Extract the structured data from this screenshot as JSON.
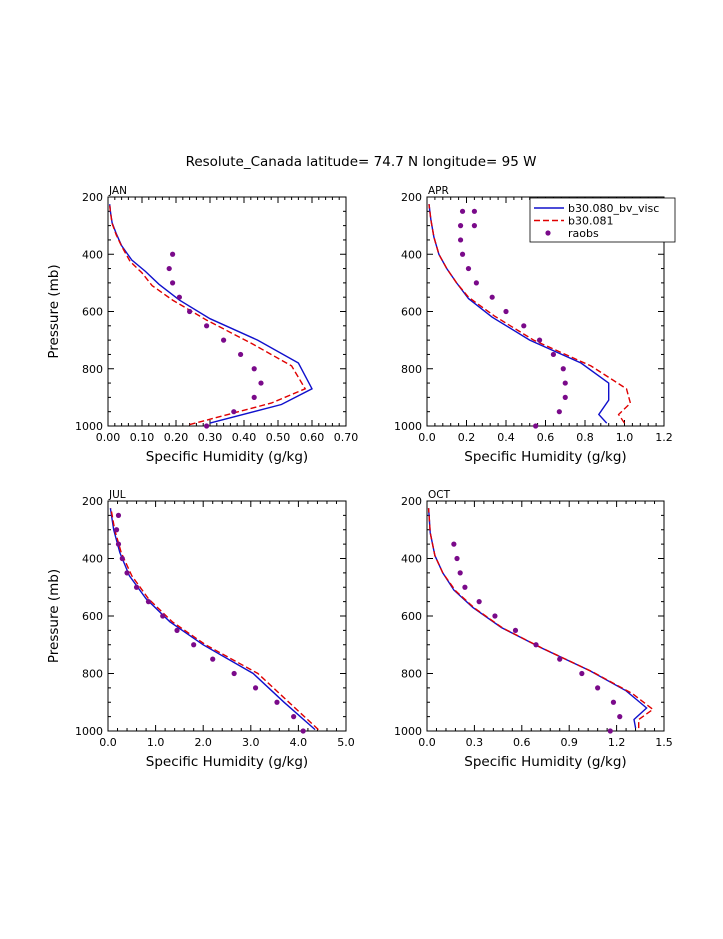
{
  "figure": {
    "title": "Resolute_Canada  latitude= 74.7 N longitude= 95 W",
    "colors": {
      "model1": "#1010cc",
      "model2": "#e00000",
      "obs": "#7a0a8a"
    },
    "legend": {
      "entries": [
        "b30.080_bv_visc",
        "b30.081",
        "raobs"
      ],
      "position": "top-right of APR panel"
    }
  },
  "chart_data": [
    {
      "type": "line",
      "title": "JAN",
      "xlabel": "Specific Humidity (g/kg)",
      "ylabel": "Pressure (mb)",
      "xlim": [
        0,
        0.7
      ],
      "ylim": [
        1000,
        200
      ],
      "xticks": [
        "0.00",
        "0.10",
        "0.20",
        "0.30",
        "0.40",
        "0.50",
        "0.60",
        "0.70"
      ],
      "yticks": [
        "200",
        "400",
        "600",
        "800",
        "1000"
      ],
      "series": [
        {
          "name": "b30.080_bv_visc",
          "style": "line",
          "x": [
            0.3,
            0.51,
            0.6,
            0.56,
            0.44,
            0.3,
            0.21,
            0.15,
            0.11,
            0.07,
            0.04,
            0.025,
            0.012,
            0.007,
            0.005
          ],
          "y": [
            990,
            925,
            870,
            780,
            700,
            625,
            560,
            505,
            460,
            420,
            370,
            330,
            290,
            250,
            225
          ]
        },
        {
          "name": "b30.081",
          "style": "dashed",
          "x": [
            0.24,
            0.48,
            0.58,
            0.54,
            0.42,
            0.29,
            0.19,
            0.13,
            0.1,
            0.065,
            0.04,
            0.024,
            0.012,
            0.007,
            0.005
          ],
          "y": [
            995,
            920,
            870,
            790,
            710,
            630,
            560,
            510,
            465,
            425,
            372,
            332,
            292,
            252,
            227
          ]
        },
        {
          "name": "raobs",
          "style": "dots",
          "x": [
            0.29,
            0.37,
            0.43,
            0.45,
            0.43,
            0.39,
            0.34,
            0.29,
            0.24,
            0.21,
            0.19,
            0.18,
            0.19
          ],
          "y": [
            1000,
            950,
            900,
            850,
            800,
            750,
            700,
            650,
            600,
            550,
            500,
            450,
            400
          ]
        }
      ]
    },
    {
      "type": "line",
      "title": "APR",
      "xlabel": "Specific Humidity (g/kg)",
      "ylabel": "",
      "xlim": [
        0,
        1.2
      ],
      "ylim": [
        1000,
        200
      ],
      "xticks": [
        "0.0",
        "0.2",
        "0.4",
        "0.6",
        "0.8",
        "1.0",
        "1.2"
      ],
      "yticks": [
        "200",
        "400",
        "600",
        "800",
        "1000"
      ],
      "series": [
        {
          "name": "b30.080_bv_visc",
          "style": "line",
          "x": [
            0.91,
            0.87,
            0.92,
            0.92,
            0.78,
            0.52,
            0.33,
            0.21,
            0.15,
            0.1,
            0.06,
            0.035,
            0.02,
            0.01
          ],
          "y": [
            990,
            960,
            910,
            850,
            780,
            700,
            620,
            555,
            500,
            450,
            400,
            340,
            280,
            225
          ]
        },
        {
          "name": "b30.081",
          "style": "dashed",
          "x": [
            1.0,
            0.97,
            1.03,
            1.01,
            0.83,
            0.54,
            0.34,
            0.21,
            0.15,
            0.1,
            0.06,
            0.035,
            0.02,
            0.01
          ],
          "y": [
            990,
            960,
            920,
            870,
            790,
            700,
            615,
            550,
            500,
            450,
            400,
            340,
            280,
            225
          ]
        },
        {
          "name": "raobs",
          "style": "dots",
          "x": [
            0.55,
            0.67,
            0.7,
            0.7,
            0.69,
            0.64,
            0.57,
            0.49,
            0.4,
            0.33,
            0.25,
            0.21,
            0.18,
            0.17,
            0.17,
            0.18,
            0.24,
            0.24
          ],
          "y": [
            1000,
            950,
            900,
            850,
            800,
            750,
            700,
            650,
            600,
            550,
            500,
            450,
            400,
            350,
            300,
            250,
            300,
            250
          ]
        }
      ]
    },
    {
      "type": "line",
      "title": "JUL",
      "xlabel": "Specific Humidity (g/kg)",
      "ylabel": "Pressure (mb)",
      "xlim": [
        0,
        5.0
      ],
      "ylim": [
        1000,
        200
      ],
      "xticks": [
        "0.0",
        "1.0",
        "2.0",
        "3.0",
        "4.0",
        "5.0"
      ],
      "yticks": [
        "200",
        "400",
        "600",
        "800",
        "1000"
      ],
      "series": [
        {
          "name": "b30.080_bv_visc",
          "style": "line",
          "x": [
            4.35,
            3.7,
            3.05,
            2.0,
            1.3,
            0.8,
            0.45,
            0.25,
            0.12,
            0.05
          ],
          "y": [
            995,
            900,
            800,
            700,
            620,
            540,
            460,
            380,
            300,
            225
          ]
        },
        {
          "name": "b30.081",
          "style": "dashed",
          "x": [
            4.42,
            3.8,
            3.15,
            2.05,
            1.35,
            0.85,
            0.5,
            0.28,
            0.14,
            0.06
          ],
          "y": [
            995,
            900,
            800,
            700,
            620,
            540,
            460,
            380,
            300,
            225
          ]
        },
        {
          "name": "raobs",
          "style": "dots",
          "x": [
            4.1,
            3.9,
            3.55,
            3.1,
            2.65,
            2.2,
            1.8,
            1.45,
            1.15,
            0.85,
            0.6,
            0.4,
            0.3,
            0.22,
            0.18,
            0.22
          ],
          "y": [
            1000,
            950,
            900,
            850,
            800,
            750,
            700,
            650,
            600,
            550,
            500,
            450,
            400,
            350,
            300,
            250
          ]
        }
      ]
    },
    {
      "type": "line",
      "title": "OCT",
      "xlabel": "Specific Humidity (g/kg)",
      "ylabel": "",
      "xlim": [
        0,
        1.5
      ],
      "ylim": [
        1000,
        200
      ],
      "xticks": [
        "0.0",
        "0.3",
        "0.6",
        "0.9",
        "1.2",
        "1.5"
      ],
      "yticks": [
        "200",
        "400",
        "600",
        "800",
        "1000"
      ],
      "series": [
        {
          "name": "b30.080_bv_visc",
          "style": "line",
          "x": [
            1.32,
            1.31,
            1.39,
            1.26,
            1.03,
            0.72,
            0.47,
            0.29,
            0.17,
            0.1,
            0.05,
            0.02,
            0.01
          ],
          "y": [
            990,
            960,
            920,
            860,
            790,
            710,
            640,
            570,
            510,
            450,
            390,
            310,
            225
          ]
        },
        {
          "name": "b30.081",
          "style": "dashed",
          "x": [
            1.34,
            1.34,
            1.43,
            1.3,
            1.05,
            0.73,
            0.48,
            0.3,
            0.18,
            0.1,
            0.05,
            0.02,
            0.01
          ],
          "y": [
            990,
            960,
            925,
            870,
            795,
            712,
            642,
            572,
            512,
            450,
            390,
            310,
            225
          ]
        },
        {
          "name": "raobs",
          "style": "dots",
          "x": [
            1.16,
            1.22,
            1.18,
            1.08,
            0.98,
            0.84,
            0.69,
            0.56,
            0.43,
            0.33,
            0.24,
            0.21,
            0.19,
            0.17
          ],
          "y": [
            1000,
            950,
            900,
            850,
            800,
            750,
            700,
            650,
            600,
            550,
            500,
            450,
            400,
            350
          ]
        }
      ]
    }
  ]
}
